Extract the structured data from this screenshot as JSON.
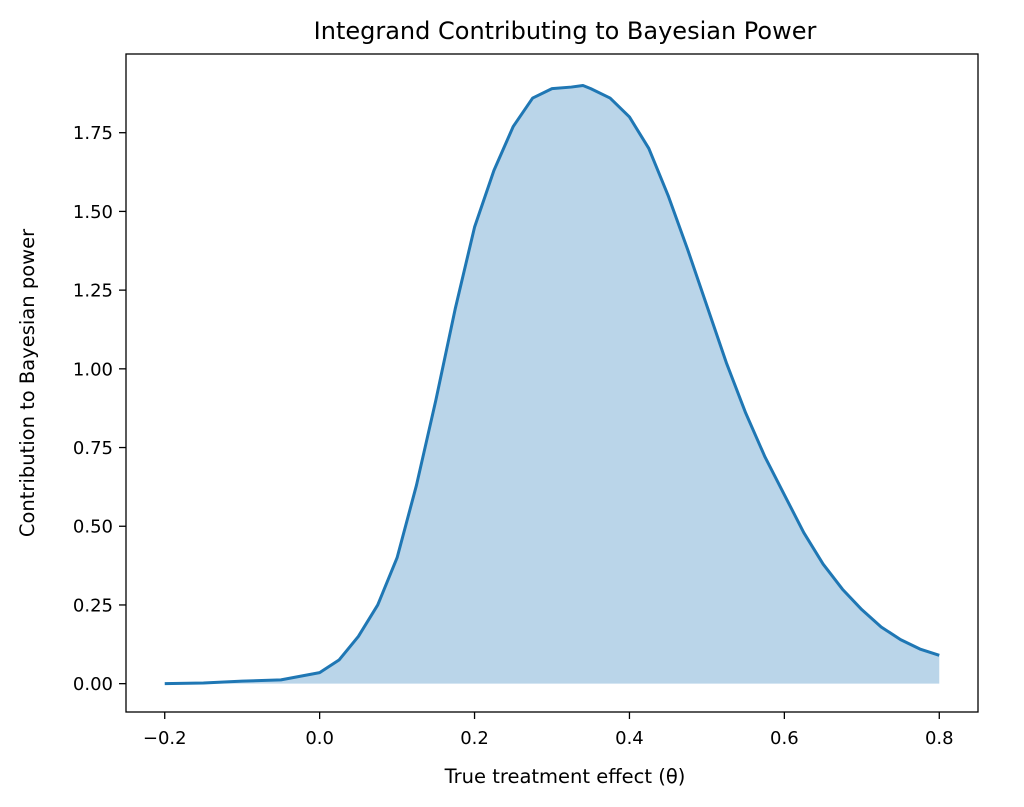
{
  "chart_data": {
    "type": "area",
    "title": "Integrand Contributing to Bayesian Power",
    "xlabel": "True treatment effect (θ)",
    "ylabel": "Contribution to Bayesian power",
    "xlim": [
      -0.25,
      0.85
    ],
    "ylim": [
      -0.09,
      2.0
    ],
    "grid": false,
    "line_color": "#1f77b4",
    "fill_color": "#bad5e9",
    "x_ticks": [
      -0.2,
      0.0,
      0.2,
      0.4,
      0.6,
      0.8
    ],
    "x_tick_labels": [
      "−0.2",
      "0.0",
      "0.2",
      "0.4",
      "0.6",
      "0.8"
    ],
    "y_ticks": [
      0.0,
      0.25,
      0.5,
      0.75,
      1.0,
      1.25,
      1.5,
      1.75
    ],
    "y_tick_labels": [
      "0.00",
      "0.25",
      "0.50",
      "0.75",
      "1.00",
      "1.25",
      "1.50",
      "1.75"
    ],
    "series": [
      {
        "x": [
          -0.2,
          -0.15,
          -0.1,
          -0.05,
          0.0,
          0.025,
          0.05,
          0.075,
          0.1,
          0.125,
          0.15,
          0.175,
          0.2,
          0.225,
          0.25,
          0.275,
          0.3,
          0.325,
          0.34,
          0.35,
          0.375,
          0.4,
          0.425,
          0.45,
          0.475,
          0.5,
          0.525,
          0.55,
          0.575,
          0.6,
          0.625,
          0.65,
          0.675,
          0.7,
          0.725,
          0.75,
          0.775,
          0.8
        ],
        "y": [
          0.0,
          0.002,
          0.008,
          0.012,
          0.035,
          0.075,
          0.15,
          0.25,
          0.4,
          0.63,
          0.9,
          1.19,
          1.45,
          1.63,
          1.77,
          1.86,
          1.89,
          1.895,
          1.9,
          1.89,
          1.86,
          1.8,
          1.7,
          1.55,
          1.38,
          1.2,
          1.02,
          0.86,
          0.72,
          0.6,
          0.48,
          0.38,
          0.3,
          0.235,
          0.18,
          0.14,
          0.11,
          0.09
        ]
      }
    ]
  }
}
